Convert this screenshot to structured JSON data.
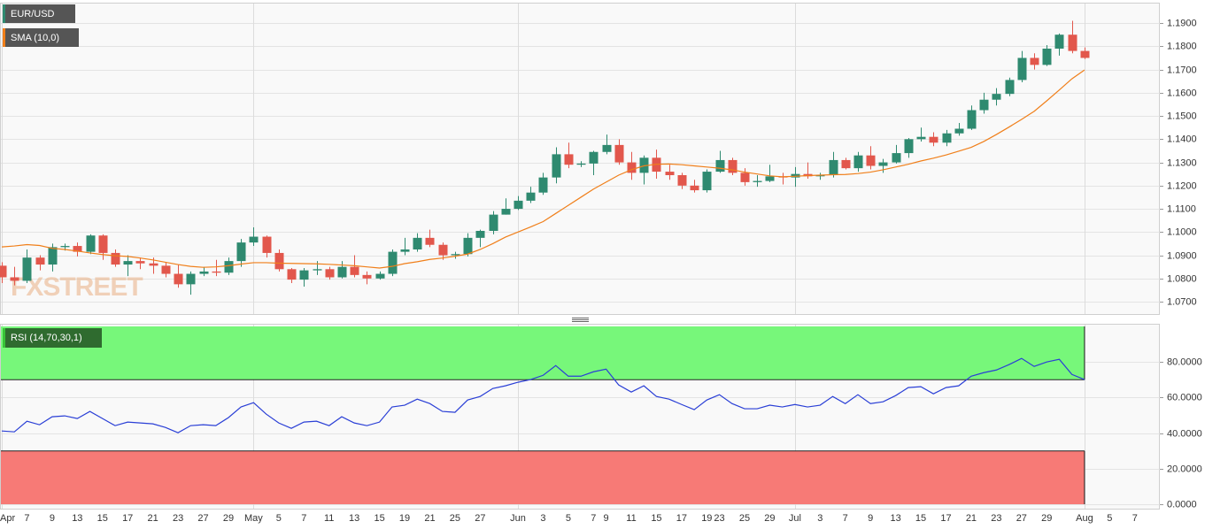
{
  "chart_data": {
    "type": "candlestick",
    "watermark": "FXSTREET",
    "categories": [
      "Apr",
      null,
      "7",
      null,
      "9",
      null,
      "13",
      null,
      "15",
      null,
      "17",
      null,
      "21",
      null,
      "23",
      null,
      "27",
      null,
      "29",
      null,
      "May",
      null,
      "5",
      null,
      "7",
      null,
      "11",
      null,
      "13",
      null,
      "15",
      null,
      "19",
      null,
      "21",
      null,
      "25",
      null,
      "27",
      null,
      null,
      "Jun",
      null,
      "3",
      null,
      "5",
      null,
      "7",
      "9",
      null,
      "11",
      null,
      "15",
      null,
      "17",
      null,
      "19",
      "23",
      null,
      "25",
      null,
      "29",
      null,
      "Jul",
      null,
      "3",
      null,
      "7",
      null,
      "9",
      null,
      "13",
      null,
      "15",
      null,
      "17",
      null,
      "21",
      null,
      "23",
      null,
      "27",
      null,
      "29",
      null,
      null,
      "Aug",
      null,
      "5",
      null,
      "7"
    ],
    "ylim": [
      1.0643,
      1.1988
    ],
    "yticks": [
      {
        "value": 1.07,
        "label": "1.0700"
      },
      {
        "value": 1.08,
        "label": "1.0800"
      },
      {
        "value": 1.09,
        "label": "1.0900"
      },
      {
        "value": 1.1,
        "label": "1.1000"
      },
      {
        "value": 1.11,
        "label": "1.1100"
      },
      {
        "value": 1.12,
        "label": "1.1200"
      },
      {
        "value": 1.13,
        "label": "1.1300"
      },
      {
        "value": 1.14,
        "label": "1.1400"
      },
      {
        "value": 1.15,
        "label": "1.1500"
      },
      {
        "value": 1.16,
        "label": "1.1600"
      },
      {
        "value": 1.17,
        "label": "1.1700"
      },
      {
        "value": 1.18,
        "label": "1.1800"
      },
      {
        "value": 1.19,
        "label": "1.1900"
      }
    ],
    "grid": true,
    "series": [
      {
        "name": "EUR/USD",
        "type": "candlestick",
        "color": "#2f8a70",
        "up_color": "#2f8a70",
        "down_color": "#e2574c",
        "open": [
          1.0855,
          1.0805,
          1.079,
          1.089,
          1.086,
          1.0935,
          1.094,
          1.0915,
          1.0985,
          1.091,
          1.086,
          1.0875,
          1.0865,
          1.0855,
          1.082,
          1.0775,
          1.082,
          1.083,
          1.0825,
          1.0875,
          1.0955,
          1.098,
          1.091,
          1.084,
          1.0795,
          1.0835,
          1.084,
          1.0805,
          1.085,
          1.0815,
          1.08,
          1.082,
          1.0915,
          1.0925,
          1.0975,
          1.0945,
          1.09,
          1.0905,
          1.0975,
          1.1005,
          1.1075,
          1.11,
          1.1135,
          1.117,
          1.1235,
          1.1335,
          1.129,
          1.1295,
          1.1345,
          1.1375,
          1.13,
          1.1255,
          1.132,
          1.126,
          1.1245,
          1.12,
          1.118,
          1.126,
          1.131,
          1.1255,
          1.1215,
          1.122,
          1.124,
          1.1235,
          1.125,
          1.124,
          1.1245,
          1.131,
          1.1275,
          1.133,
          1.1285,
          1.13,
          1.134,
          1.14,
          1.141,
          1.1385,
          1.1425,
          1.1445,
          1.1525,
          1.157,
          1.1595,
          1.1655,
          1.175,
          1.172,
          1.179,
          1.185,
          1.178,
          null,
          null,
          null,
          null
        ],
        "high": [
          1.087,
          1.085,
          1.0925,
          1.09,
          1.095,
          1.095,
          1.0955,
          1.099,
          1.099,
          1.0925,
          1.09,
          1.089,
          1.089,
          1.087,
          1.086,
          1.083,
          1.085,
          1.088,
          1.089,
          1.097,
          1.102,
          1.0985,
          1.0925,
          1.0845,
          1.0845,
          1.0875,
          1.085,
          1.0875,
          1.09,
          1.083,
          1.083,
          1.0925,
          1.0975,
          1.0995,
          1.101,
          1.0955,
          1.0915,
          1.0995,
          1.101,
          1.109,
          1.1145,
          1.1155,
          1.1195,
          1.1255,
          1.1365,
          1.1385,
          1.1305,
          1.135,
          1.142,
          1.14,
          1.1345,
          1.133,
          1.1355,
          1.129,
          1.1255,
          1.1225,
          1.127,
          1.135,
          1.132,
          1.1275,
          1.1245,
          1.129,
          1.1255,
          1.128,
          1.13,
          1.1255,
          1.1345,
          1.132,
          1.1345,
          1.137,
          1.1315,
          1.1375,
          1.1405,
          1.145,
          1.143,
          1.144,
          1.147,
          1.1545,
          1.16,
          1.162,
          1.1665,
          1.178,
          1.177,
          1.1805,
          1.1855,
          1.191,
          1.1795,
          null,
          null,
          null,
          null
        ],
        "low": [
          1.078,
          1.077,
          1.078,
          1.0835,
          1.083,
          1.092,
          1.0895,
          1.0905,
          1.088,
          1.085,
          1.081,
          1.084,
          1.082,
          1.0805,
          1.076,
          1.073,
          1.081,
          1.081,
          1.0815,
          1.085,
          1.094,
          1.089,
          1.083,
          1.078,
          1.0765,
          1.0815,
          1.0795,
          1.08,
          1.0805,
          1.0775,
          1.0795,
          1.081,
          1.09,
          1.0915,
          1.0935,
          1.088,
          1.0885,
          1.0895,
          1.0935,
          1.099,
          1.1075,
          1.1095,
          1.1125,
          1.116,
          1.121,
          1.1275,
          1.128,
          1.1245,
          1.1335,
          1.129,
          1.1225,
          1.1205,
          1.123,
          1.1225,
          1.1185,
          1.117,
          1.117,
          1.1255,
          1.1245,
          1.12,
          1.1195,
          1.1215,
          1.1205,
          1.1195,
          1.123,
          1.1225,
          1.1235,
          1.127,
          1.126,
          1.127,
          1.1255,
          1.1295,
          1.132,
          1.139,
          1.137,
          1.137,
          1.1415,
          1.144,
          1.151,
          1.1545,
          1.1585,
          1.1645,
          1.17,
          1.1715,
          1.176,
          1.177,
          1.1745,
          null,
          null,
          null,
          null
        ],
        "close": [
          1.0805,
          1.079,
          1.089,
          1.086,
          1.0935,
          1.094,
          1.0915,
          1.0985,
          1.091,
          1.086,
          1.0875,
          1.0865,
          1.0855,
          1.082,
          1.0775,
          1.082,
          1.083,
          1.0825,
          1.0875,
          1.0955,
          1.098,
          1.091,
          1.084,
          1.0795,
          1.0835,
          1.084,
          1.0805,
          1.085,
          1.0815,
          1.08,
          1.082,
          1.0915,
          1.0925,
          1.0975,
          1.0945,
          1.09,
          1.0905,
          1.0975,
          1.1005,
          1.1075,
          1.11,
          1.1135,
          1.117,
          1.1235,
          1.1335,
          1.129,
          1.1295,
          1.1345,
          1.1375,
          1.13,
          1.1255,
          1.132,
          1.126,
          1.1245,
          1.12,
          1.118,
          1.126,
          1.131,
          1.1255,
          1.1215,
          1.122,
          1.124,
          1.1235,
          1.125,
          1.124,
          1.1245,
          1.131,
          1.1275,
          1.133,
          1.1285,
          1.13,
          1.134,
          1.14,
          1.141,
          1.1385,
          1.1425,
          1.1445,
          1.1525,
          1.157,
          1.1595,
          1.1655,
          1.175,
          1.172,
          1.179,
          1.185,
          1.178,
          1.175,
          null,
          null,
          null,
          null
        ]
      },
      {
        "name": "SMA (10,0)",
        "type": "line",
        "color": "#f07f1a",
        "values": [
          1.0936,
          1.094,
          1.0946,
          1.0942,
          1.093,
          1.0925,
          1.0918,
          1.091,
          1.0903,
          1.0898,
          1.0895,
          1.0888,
          1.088,
          1.087,
          1.086,
          1.0852,
          1.0848,
          1.085,
          1.0855,
          1.0862,
          1.0868,
          1.0868,
          1.0866,
          1.0865,
          1.0864,
          1.0863,
          1.0861,
          1.0858,
          1.0855,
          1.085,
          1.0845,
          1.0852,
          1.0864,
          1.0872,
          1.0882,
          1.0888,
          1.0896,
          1.0905,
          1.0925,
          1.095,
          1.0978,
          1.1,
          1.1022,
          1.1045,
          1.108,
          1.1115,
          1.115,
          1.1185,
          1.1215,
          1.1245,
          1.1268,
          1.1285,
          1.1292,
          1.1293,
          1.129,
          1.1285,
          1.128,
          1.1275,
          1.1268,
          1.1258,
          1.125,
          1.1242,
          1.1238,
          1.124,
          1.1243,
          1.1245,
          1.1247,
          1.1248,
          1.1252,
          1.1258,
          1.1268,
          1.128,
          1.1292,
          1.1306,
          1.1318,
          1.1332,
          1.1348,
          1.1365,
          1.139,
          1.142,
          1.1452,
          1.1485,
          1.152,
          1.1565,
          1.1612,
          1.166,
          1.1698,
          null,
          null,
          null,
          null
        ]
      }
    ],
    "rsi": {
      "name": "RSI (14,70,30,1)",
      "color": "#2a3fd6",
      "legend_color": "#2f6b2f",
      "overbought": 70,
      "oversold": 30,
      "overbought_color": "#77f77a",
      "oversold_color": "#f77a76",
      "ylim": [
        0,
        100
      ],
      "yticks": [
        {
          "value": 0,
          "label": "0.0000"
        },
        {
          "value": 20,
          "label": "20.0000"
        },
        {
          "value": 40,
          "label": "40.0000"
        },
        {
          "value": 60,
          "label": "60.0000"
        },
        {
          "value": 80,
          "label": "80.0000"
        }
      ],
      "values": [
        41.2,
        40.7,
        46.7,
        44.7,
        49.2,
        49.7,
        48.2,
        52.2,
        48.2,
        44.2,
        46.2,
        45.7,
        45.2,
        43.2,
        40.2,
        44.2,
        44.7,
        44.2,
        48.7,
        54.7,
        57.1,
        50.7,
        45.7,
        42.7,
        46.2,
        46.7,
        44.2,
        49.2,
        45.7,
        44.2,
        46.2,
        54.7,
        55.7,
        59.1,
        56.6,
        52.2,
        51.7,
        58.6,
        60.6,
        65.1,
        66.6,
        68.6,
        70.1,
        72.5,
        78.0,
        72.0,
        72.0,
        74.5,
        76.0,
        67.1,
        63.1,
        66.6,
        60.6,
        59.1,
        56.1,
        53.2,
        58.6,
        61.6,
        56.6,
        53.7,
        53.7,
        55.7,
        54.7,
        56.1,
        54.7,
        55.7,
        60.6,
        56.6,
        61.6,
        56.6,
        57.6,
        61.1,
        65.6,
        66.1,
        62.1,
        65.6,
        66.6,
        72.0,
        74.0,
        75.5,
        78.5,
        82.0,
        77.5,
        80.0,
        81.5,
        73.0,
        70.1,
        null,
        null,
        null,
        null
      ]
    }
  }
}
